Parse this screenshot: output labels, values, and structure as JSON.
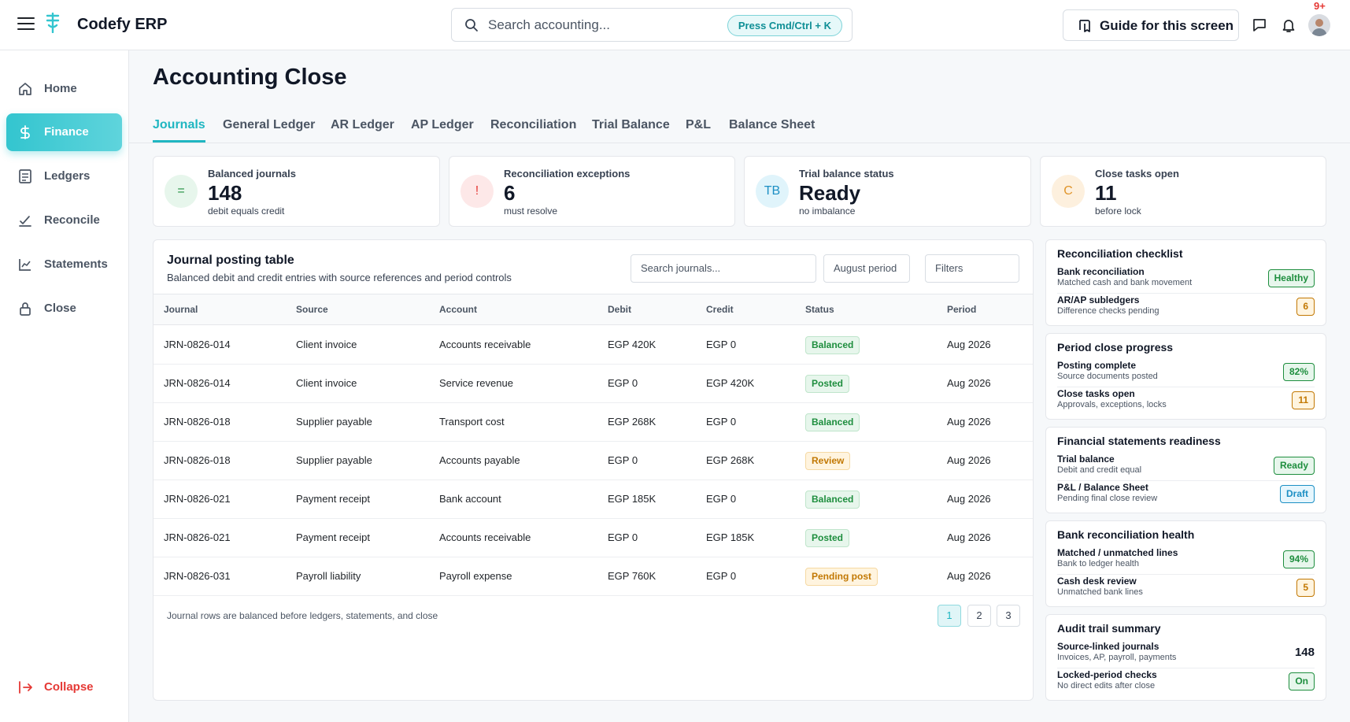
{
  "app": {
    "title": "Codefy ERP",
    "notification_count": "9+"
  },
  "search": {
    "placeholder": "Search accounting...",
    "shortcut": "Press Cmd/Ctrl + K"
  },
  "header": {
    "guide_label": "Guide for this screen"
  },
  "sidebar": {
    "items": [
      {
        "label": "Home",
        "icon": "home-icon"
      },
      {
        "label": "Finance",
        "icon": "dollar-icon",
        "active": true
      },
      {
        "label": "Ledgers",
        "icon": "ledger-icon"
      },
      {
        "label": "Reconcile",
        "icon": "reconcile-icon"
      },
      {
        "label": "Statements",
        "icon": "chart-line-icon"
      },
      {
        "label": "Close",
        "icon": "lock-icon"
      }
    ],
    "collapse_label": "Collapse"
  },
  "page": {
    "title": "Accounting Close"
  },
  "tabs": [
    "Journals",
    "General Ledger",
    "AR Ledger",
    "AP Ledger",
    "Reconciliation",
    "Trial Balance",
    "P&L",
    "Balance Sheet"
  ],
  "stats": [
    {
      "icon_text": "=",
      "label": "Balanced journals",
      "value": "148",
      "sub": "debit equals credit",
      "color": "#1e8e3e"
    },
    {
      "icon_text": "!",
      "label": "Reconciliation exceptions",
      "value": "6",
      "sub": "must resolve",
      "color": "#e53935"
    },
    {
      "icon_text": "TB",
      "label": "Trial balance status",
      "value": "Ready",
      "sub": "no imbalance",
      "color": "#1c8fc4"
    },
    {
      "icon_text": "C",
      "label": "Close tasks open",
      "value": "11",
      "sub": "before lock",
      "color": "#e0952b"
    }
  ],
  "journal": {
    "title": "Journal posting table",
    "subtitle": "Balanced debit and credit entries with source references and period controls",
    "search_placeholder": "Search journals...",
    "period": "August period",
    "filters": "Filters",
    "columns": [
      "Journal",
      "Source",
      "Account",
      "Debit",
      "Credit",
      "Status",
      "Period"
    ],
    "rows": [
      {
        "journal": "JRN-0826-014",
        "source": "Client invoice",
        "account": "Accounts receivable",
        "debit": "EGP 420K",
        "credit": "EGP 0",
        "status": "Balanced",
        "period": "Aug 2026"
      },
      {
        "journal": "JRN-0826-014",
        "source": "Client invoice",
        "account": "Service revenue",
        "debit": "EGP 0",
        "credit": "EGP 420K",
        "status": "Posted",
        "period": "Aug 2026"
      },
      {
        "journal": "JRN-0826-018",
        "source": "Supplier payable",
        "account": "Transport cost",
        "debit": "EGP 268K",
        "credit": "EGP 0",
        "status": "Balanced",
        "period": "Aug 2026"
      },
      {
        "journal": "JRN-0826-018",
        "source": "Supplier payable",
        "account": "Accounts payable",
        "debit": "EGP 0",
        "credit": "EGP 268K",
        "status": "Review",
        "period": "Aug 2026"
      },
      {
        "journal": "JRN-0826-021",
        "source": "Payment receipt",
        "account": "Bank account",
        "debit": "EGP 185K",
        "credit": "EGP 0",
        "status": "Balanced",
        "period": "Aug 2026"
      },
      {
        "journal": "JRN-0826-021",
        "source": "Payment receipt",
        "account": "Accounts receivable",
        "debit": "EGP 0",
        "credit": "EGP 185K",
        "status": "Posted",
        "period": "Aug 2026"
      },
      {
        "journal": "JRN-0826-031",
        "source": "Payroll liability",
        "account": "Payroll expense",
        "debit": "EGP 760K",
        "credit": "EGP 0",
        "status": "Pending post",
        "period": "Aug 2026"
      }
    ],
    "footer_note": "Journal rows are balanced before ledgers, statements, and close",
    "pages": [
      "1",
      "2",
      "3"
    ]
  },
  "cards": [
    {
      "title": "Reconciliation checklist",
      "items": [
        {
          "title": "Bank reconciliation",
          "sub": "Matched cash and bank movement",
          "badge": "Healthy",
          "tone": "green"
        },
        {
          "title": "AR/AP subledgers",
          "sub": "Difference checks pending",
          "badge": "6",
          "tone": "amber"
        }
      ]
    },
    {
      "title": "Period close progress",
      "items": [
        {
          "title": "Posting complete",
          "sub": "Source documents posted",
          "badge": "82%",
          "tone": "green"
        },
        {
          "title": "Close tasks open",
          "sub": "Approvals, exceptions, locks",
          "badge": "11",
          "tone": "amber"
        }
      ]
    },
    {
      "title": "Financial statements readiness",
      "items": [
        {
          "title": "Trial balance",
          "sub": "Debit and credit equal",
          "badge": "Ready",
          "tone": "green"
        },
        {
          "title": "P&L / Balance Sheet",
          "sub": "Pending final close review",
          "badge": "Draft",
          "tone": "blue"
        }
      ]
    },
    {
      "title": "Bank reconciliation health",
      "items": [
        {
          "title": "Matched / unmatched lines",
          "sub": "Bank to ledger health",
          "badge": "94%",
          "tone": "green"
        },
        {
          "title": "Cash desk review",
          "sub": "Unmatched bank lines",
          "badge": "5",
          "tone": "amber"
        }
      ]
    },
    {
      "title": "Audit trail summary",
      "items": [
        {
          "title": "Source-linked journals",
          "sub": "Invoices, AP, payroll, payments",
          "badge": "148",
          "tone": "plain"
        },
        {
          "title": "Locked-period checks",
          "sub": "No direct edits after close",
          "badge": "On",
          "tone": "green"
        }
      ]
    }
  ]
}
